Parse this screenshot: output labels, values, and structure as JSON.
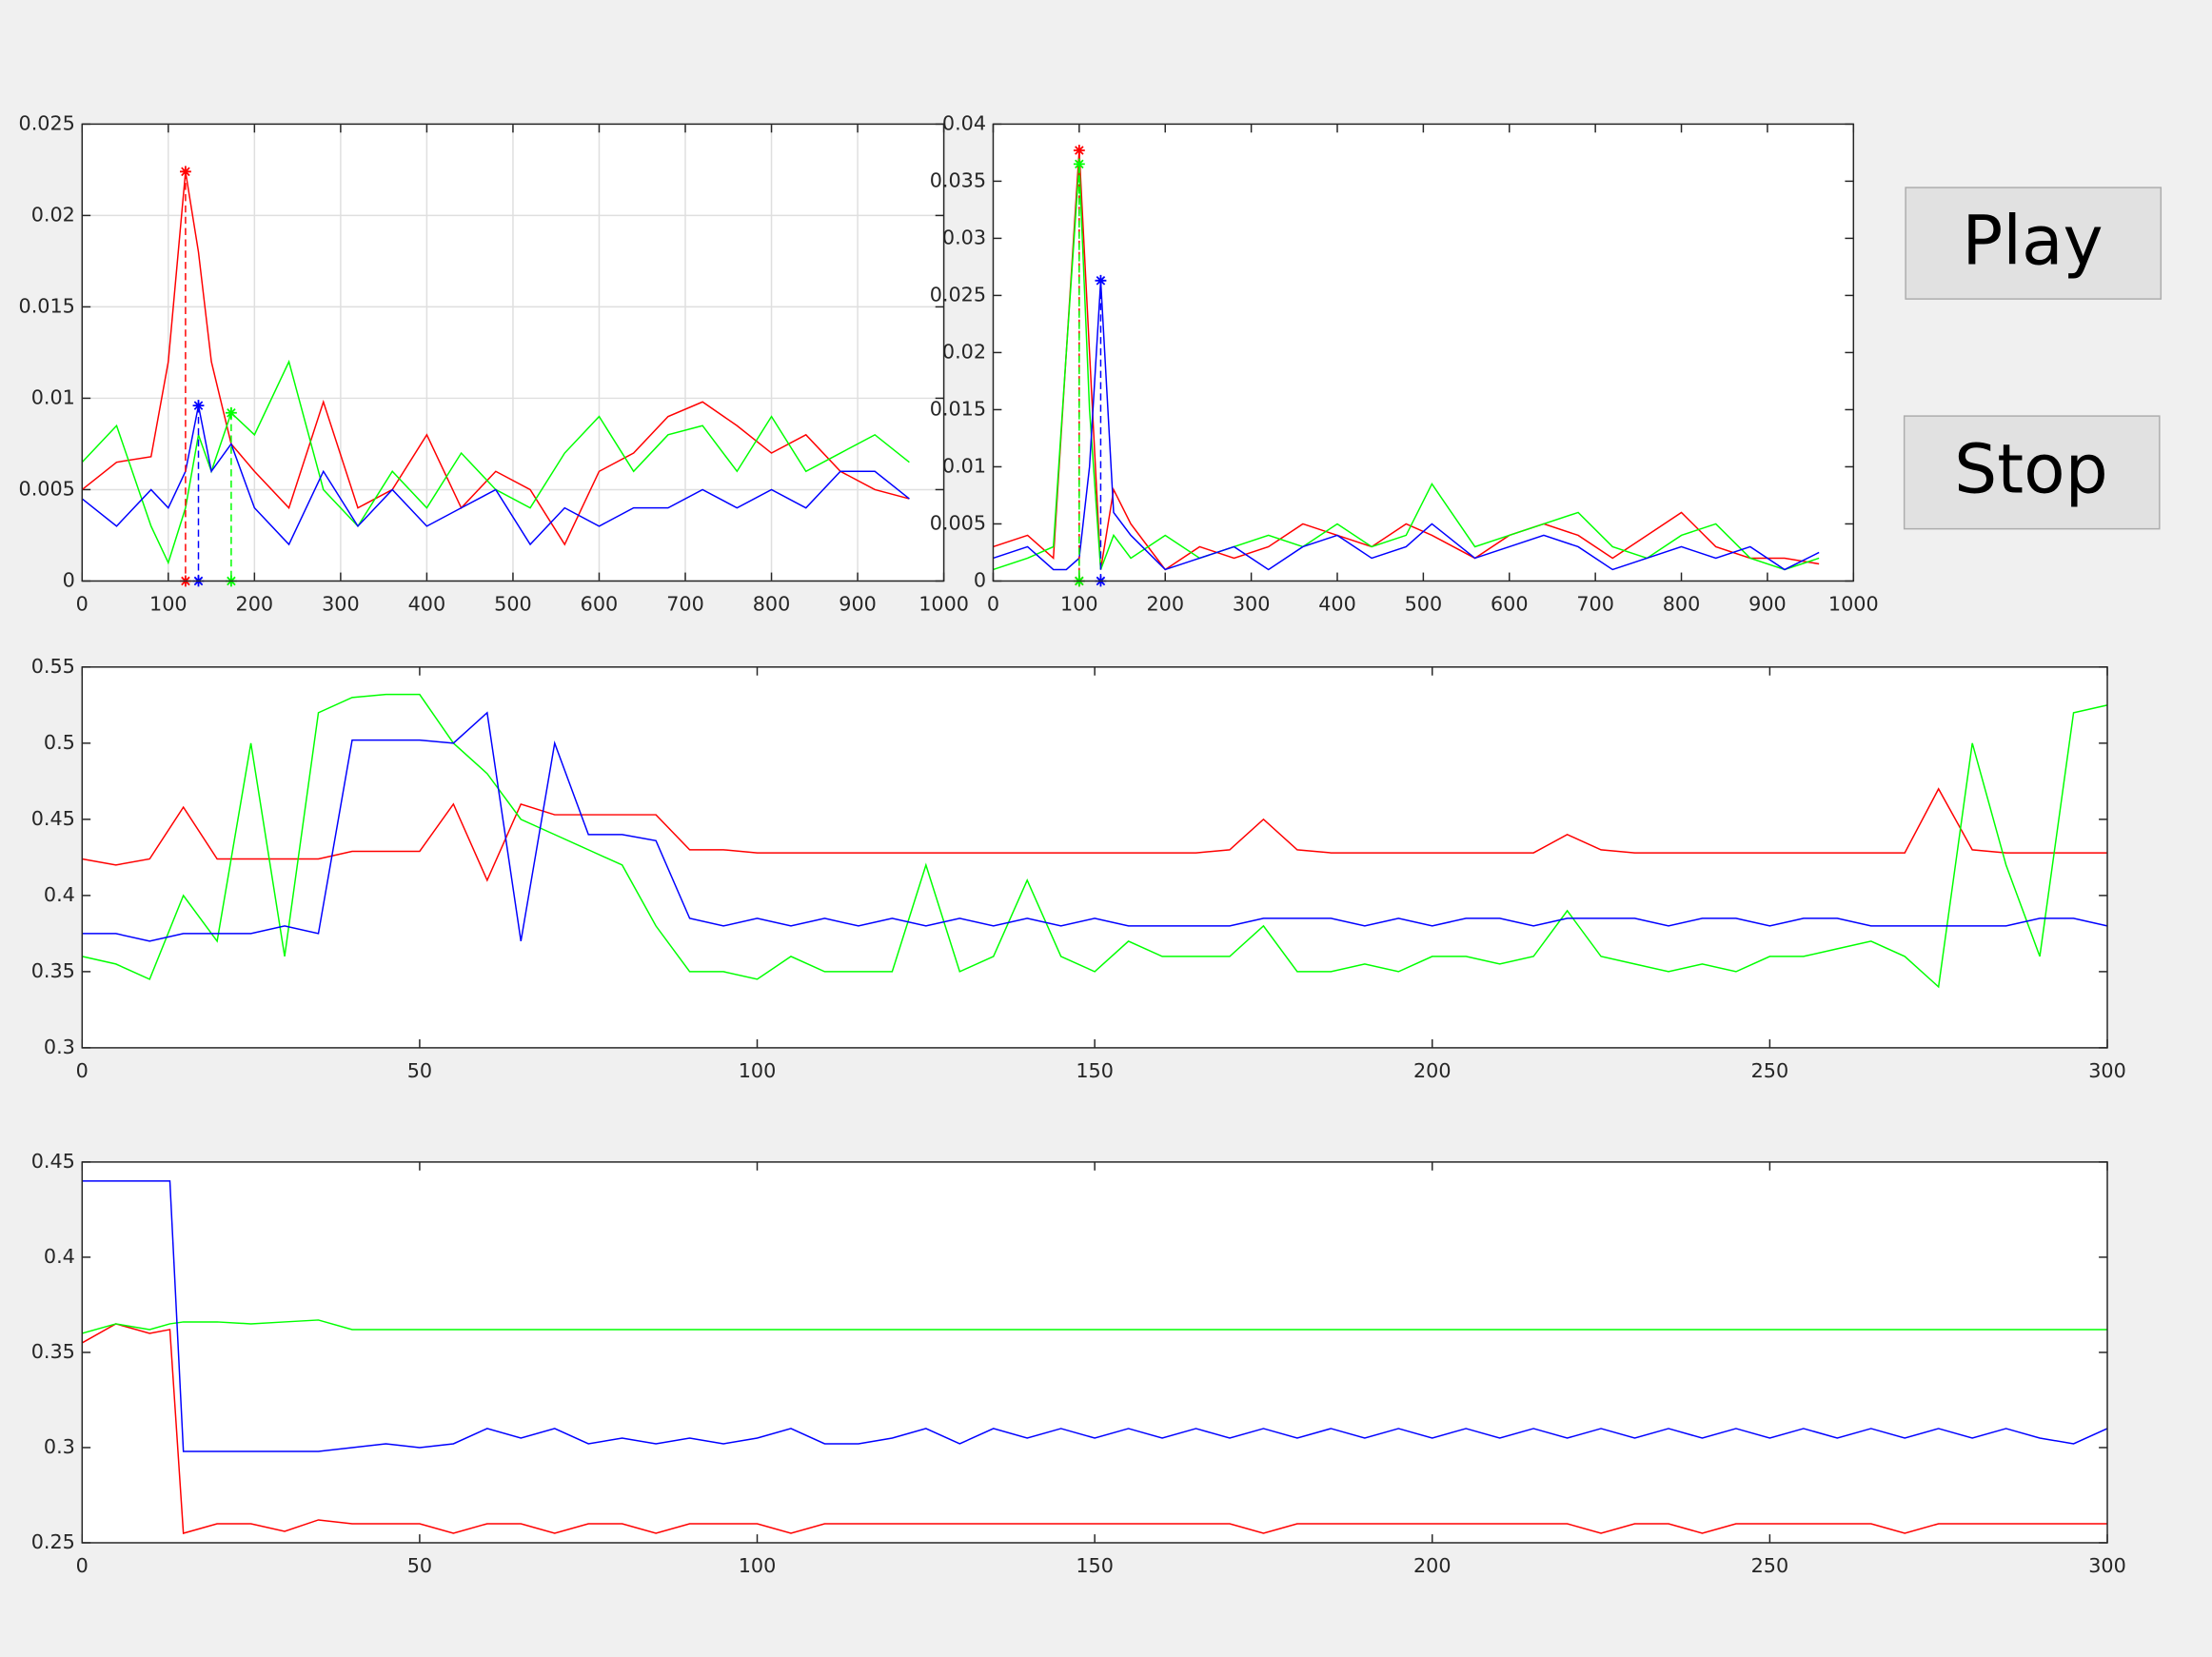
{
  "chart_data": [
    {
      "type": "line",
      "x": [
        0,
        40,
        80,
        100,
        120,
        135,
        150,
        173,
        200,
        240,
        280,
        320,
        360,
        400,
        440,
        480,
        520,
        560,
        600,
        640,
        680,
        720,
        760,
        800,
        840,
        880,
        920,
        960
      ],
      "series": [
        {
          "color": "#ff0000",
          "values": [
            0.005,
            0.0065,
            0.0068,
            0.012,
            0.0224,
            0.018,
            0.012,
            0.0075,
            0.006,
            0.004,
            0.0098,
            0.004,
            0.005,
            0.008,
            0.004,
            0.006,
            0.005,
            0.002,
            0.006,
            0.007,
            0.009,
            0.0098,
            0.0085,
            0.007,
            0.008,
            0.006,
            0.005,
            0.0045
          ]
        },
        {
          "color": "#00ff00",
          "values": [
            0.0065,
            0.0085,
            0.003,
            0.001,
            0.004,
            0.008,
            0.006,
            0.0092,
            0.008,
            0.012,
            0.005,
            0.003,
            0.006,
            0.004,
            0.007,
            0.005,
            0.004,
            0.007,
            0.009,
            0.006,
            0.008,
            0.0085,
            0.006,
            0.009,
            0.006,
            0.007,
            0.008,
            0.0065
          ]
        },
        {
          "color": "#0000ff",
          "values": [
            0.0045,
            0.003,
            0.005,
            0.004,
            0.006,
            0.0096,
            0.006,
            0.0075,
            0.004,
            0.002,
            0.006,
            0.003,
            0.005,
            0.003,
            0.004,
            0.005,
            0.002,
            0.004,
            0.003,
            0.004,
            0.004,
            0.005,
            0.004,
            0.005,
            0.004,
            0.006,
            0.006,
            0.0045
          ]
        }
      ],
      "peaks": [
        {
          "color": "#ff0000",
          "x": 120,
          "y": 0.0224
        },
        {
          "color": "#0000ff",
          "x": 135,
          "y": 0.0096
        },
        {
          "color": "#00ff00",
          "x": 173,
          "y": 0.0092
        }
      ],
      "xlim": [
        0,
        1000
      ],
      "xticks": [
        0,
        100,
        200,
        300,
        400,
        500,
        600,
        700,
        800,
        900,
        1000
      ],
      "ylim": [
        0,
        0.025
      ],
      "yticks": [
        0,
        0.005,
        0.01,
        0.015,
        0.02,
        0.025
      ],
      "grid": true
    },
    {
      "type": "line",
      "x": [
        0,
        40,
        70,
        85,
        100,
        112,
        125,
        140,
        160,
        200,
        240,
        280,
        320,
        360,
        400,
        440,
        480,
        510,
        560,
        600,
        640,
        680,
        720,
        760,
        800,
        840,
        880,
        920,
        960
      ],
      "series": [
        {
          "color": "#ff0000",
          "values": [
            0.003,
            0.004,
            0.002,
            0.02,
            0.0377,
            0.02,
            0.001,
            0.008,
            0.005,
            0.001,
            0.003,
            0.002,
            0.003,
            0.005,
            0.004,
            0.003,
            0.005,
            0.004,
            0.002,
            0.004,
            0.005,
            0.004,
            0.002,
            0.004,
            0.006,
            0.003,
            0.002,
            0.002,
            0.0015
          ]
        },
        {
          "color": "#00ff00",
          "values": [
            0.001,
            0.002,
            0.003,
            0.02,
            0.0365,
            0.015,
            0.001,
            0.004,
            0.002,
            0.004,
            0.002,
            0.003,
            0.004,
            0.003,
            0.005,
            0.003,
            0.004,
            0.0085,
            0.003,
            0.004,
            0.005,
            0.006,
            0.003,
            0.002,
            0.004,
            0.005,
            0.002,
            0.001,
            0.002
          ]
        },
        {
          "color": "#0000ff",
          "values": [
            0.002,
            0.003,
            0.001,
            0.001,
            0.002,
            0.01,
            0.0263,
            0.006,
            0.004,
            0.001,
            0.002,
            0.003,
            0.001,
            0.003,
            0.004,
            0.002,
            0.003,
            0.005,
            0.002,
            0.003,
            0.004,
            0.003,
            0.001,
            0.002,
            0.003,
            0.002,
            0.003,
            0.001,
            0.0025
          ]
        }
      ],
      "peaks": [
        {
          "color": "#ff0000",
          "x": 100,
          "y": 0.0377
        },
        {
          "color": "#00ff00",
          "x": 100,
          "y": 0.0365
        },
        {
          "color": "#0000ff",
          "x": 125,
          "y": 0.0263
        }
      ],
      "xlim": [
        0,
        1000
      ],
      "xticks": [
        0,
        100,
        200,
        300,
        400,
        500,
        600,
        700,
        800,
        900,
        1000
      ],
      "ylim": [
        0,
        0.04
      ],
      "yticks": [
        0,
        0.005,
        0.01,
        0.015,
        0.02,
        0.025,
        0.03,
        0.035,
        0.04
      ],
      "grid": false
    },
    {
      "type": "line",
      "x": [
        0,
        5,
        10,
        15,
        20,
        25,
        30,
        35,
        40,
        45,
        50,
        55,
        60,
        65,
        70,
        75,
        80,
        85,
        90,
        95,
        100,
        105,
        110,
        115,
        120,
        125,
        130,
        135,
        140,
        145,
        150,
        155,
        160,
        165,
        170,
        175,
        180,
        185,
        190,
        195,
        200,
        205,
        210,
        215,
        220,
        225,
        230,
        235,
        240,
        245,
        250,
        255,
        260,
        265,
        270,
        275,
        280,
        285,
        290,
        295,
        300
      ],
      "series": [
        {
          "color": "#ff0000",
          "values": [
            0.424,
            0.42,
            0.424,
            0.458,
            0.424,
            0.424,
            0.424,
            0.424,
            0.429,
            0.429,
            0.429,
            0.46,
            0.41,
            0.46,
            0.453,
            0.453,
            0.453,
            0.453,
            0.43,
            0.43,
            0.428,
            0.428,
            0.428,
            0.428,
            0.428,
            0.428,
            0.428,
            0.428,
            0.428,
            0.428,
            0.428,
            0.428,
            0.428,
            0.428,
            0.43,
            0.45,
            0.43,
            0.428,
            0.428,
            0.428,
            0.428,
            0.428,
            0.428,
            0.428,
            0.44,
            0.43,
            0.428,
            0.428,
            0.428,
            0.428,
            0.428,
            0.428,
            0.428,
            0.428,
            0.428,
            0.47,
            0.43,
            0.428,
            0.428,
            0.428,
            0.428
          ]
        },
        {
          "color": "#00ff00",
          "values": [
            0.36,
            0.355,
            0.345,
            0.4,
            0.37,
            0.5,
            0.36,
            0.52,
            0.53,
            0.532,
            0.532,
            0.5,
            0.48,
            0.45,
            0.44,
            0.43,
            0.42,
            0.38,
            0.35,
            0.35,
            0.345,
            0.36,
            0.35,
            0.35,
            0.35,
            0.42,
            0.35,
            0.36,
            0.41,
            0.36,
            0.35,
            0.37,
            0.36,
            0.36,
            0.36,
            0.38,
            0.35,
            0.35,
            0.355,
            0.35,
            0.36,
            0.36,
            0.355,
            0.36,
            0.39,
            0.36,
            0.355,
            0.35,
            0.355,
            0.35,
            0.36,
            0.36,
            0.365,
            0.37,
            0.36,
            0.34,
            0.5,
            0.42,
            0.36,
            0.52,
            0.525
          ]
        },
        {
          "color": "#0000ff",
          "values": [
            0.375,
            0.375,
            0.37,
            0.375,
            0.375,
            0.375,
            0.38,
            0.375,
            0.502,
            0.502,
            0.502,
            0.5,
            0.52,
            0.37,
            0.5,
            0.44,
            0.44,
            0.436,
            0.385,
            0.38,
            0.385,
            0.38,
            0.385,
            0.38,
            0.385,
            0.38,
            0.385,
            0.38,
            0.385,
            0.38,
            0.385,
            0.38,
            0.38,
            0.38,
            0.38,
            0.385,
            0.385,
            0.385,
            0.38,
            0.385,
            0.38,
            0.385,
            0.385,
            0.38,
            0.385,
            0.385,
            0.385,
            0.38,
            0.385,
            0.385,
            0.38,
            0.385,
            0.385,
            0.38,
            0.38,
            0.38,
            0.38,
            0.38,
            0.385,
            0.385,
            0.38
          ]
        }
      ],
      "xlim": [
        0,
        300
      ],
      "xticks": [
        0,
        50,
        100,
        150,
        200,
        250,
        300
      ],
      "ylim": [
        0.3,
        0.55
      ],
      "yticks": [
        0.3,
        0.35,
        0.4,
        0.45,
        0.5,
        0.55
      ],
      "grid": false
    },
    {
      "type": "line",
      "x": [
        0,
        5,
        10,
        13,
        15,
        20,
        25,
        30,
        35,
        40,
        45,
        50,
        55,
        60,
        65,
        70,
        75,
        80,
        85,
        90,
        95,
        100,
        105,
        110,
        115,
        120,
        125,
        130,
        135,
        140,
        145,
        150,
        155,
        160,
        165,
        170,
        175,
        180,
        185,
        190,
        195,
        200,
        205,
        210,
        215,
        220,
        225,
        230,
        235,
        240,
        245,
        250,
        255,
        260,
        265,
        270,
        275,
        280,
        285,
        290,
        295,
        300
      ],
      "series": [
        {
          "color": "#ff0000",
          "values": [
            0.355,
            0.365,
            0.36,
            0.362,
            0.255,
            0.26,
            0.26,
            0.256,
            0.262,
            0.26,
            0.26,
            0.26,
            0.255,
            0.26,
            0.26,
            0.255,
            0.26,
            0.26,
            0.255,
            0.26,
            0.26,
            0.26,
            0.255,
            0.26,
            0.26,
            0.26,
            0.26,
            0.26,
            0.26,
            0.26,
            0.26,
            0.26,
            0.26,
            0.26,
            0.26,
            0.26,
            0.255,
            0.26,
            0.26,
            0.26,
            0.26,
            0.26,
            0.26,
            0.26,
            0.26,
            0.26,
            0.255,
            0.26,
            0.26,
            0.255,
            0.26,
            0.26,
            0.26,
            0.26,
            0.26,
            0.255,
            0.26,
            0.26,
            0.26,
            0.26,
            0.26,
            0.26
          ]
        },
        {
          "color": "#00ff00",
          "values": [
            0.36,
            0.365,
            0.362,
            0.365,
            0.366,
            0.366,
            0.365,
            0.366,
            0.367,
            0.362,
            0.362,
            0.362,
            0.362,
            0.362,
            0.362,
            0.362,
            0.362,
            0.362,
            0.362,
            0.362,
            0.362,
            0.362,
            0.362,
            0.362,
            0.362,
            0.362,
            0.362,
            0.362,
            0.362,
            0.362,
            0.362,
            0.362,
            0.362,
            0.362,
            0.362,
            0.362,
            0.362,
            0.362,
            0.362,
            0.362,
            0.362,
            0.362,
            0.362,
            0.362,
            0.362,
            0.362,
            0.362,
            0.362,
            0.362,
            0.362,
            0.362,
            0.362,
            0.362,
            0.362,
            0.362,
            0.362,
            0.362,
            0.362,
            0.362,
            0.362,
            0.362,
            0.362
          ]
        },
        {
          "color": "#0000ff",
          "values": [
            0.44,
            0.44,
            0.44,
            0.44,
            0.298,
            0.298,
            0.298,
            0.298,
            0.298,
            0.3,
            0.302,
            0.3,
            0.302,
            0.31,
            0.305,
            0.31,
            0.302,
            0.305,
            0.302,
            0.305,
            0.302,
            0.305,
            0.31,
            0.302,
            0.302,
            0.305,
            0.31,
            0.302,
            0.31,
            0.305,
            0.31,
            0.305,
            0.31,
            0.305,
            0.31,
            0.305,
            0.31,
            0.305,
            0.31,
            0.305,
            0.31,
            0.305,
            0.31,
            0.305,
            0.31,
            0.305,
            0.31,
            0.305,
            0.31,
            0.305,
            0.31,
            0.305,
            0.31,
            0.305,
            0.31,
            0.305,
            0.31,
            0.305,
            0.31,
            0.305,
            0.302,
            0.31
          ]
        }
      ],
      "xlim": [
        0,
        300
      ],
      "xticks": [
        0,
        50,
        100,
        150,
        200,
        250,
        300
      ],
      "ylim": [
        0.25,
        0.45
      ],
      "yticks": [
        0.25,
        0.3,
        0.35,
        0.4,
        0.45
      ],
      "grid": false
    }
  ],
  "buttons": [
    {
      "label": "Play"
    },
    {
      "label": "Stop"
    }
  ]
}
